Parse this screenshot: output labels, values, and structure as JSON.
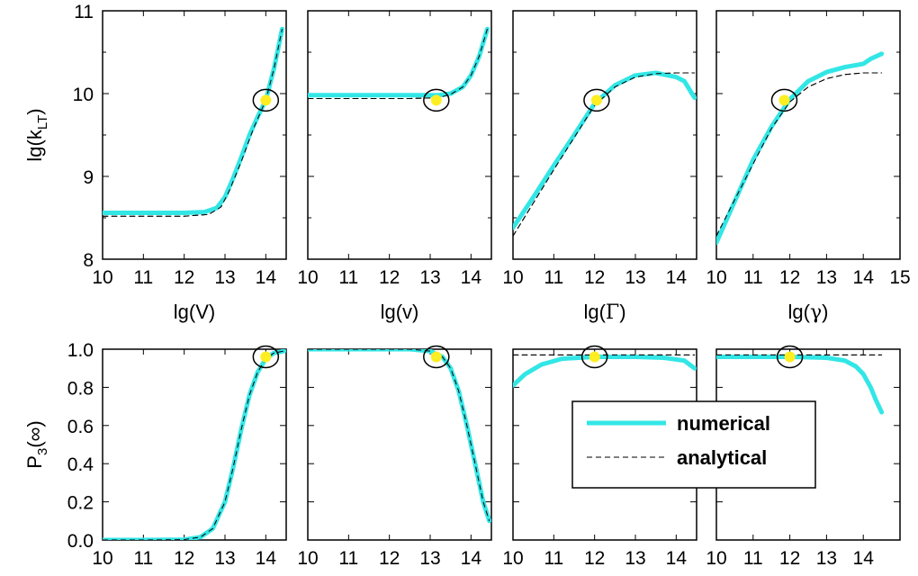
{
  "chart_data": [
    {
      "type": "line",
      "xlim": [
        10,
        14.5
      ],
      "ylim": [
        8,
        11
      ],
      "xticks": [
        "10",
        "11",
        "12",
        "13",
        "14"
      ],
      "yticks": [
        "8",
        "9",
        "10",
        "11"
      ],
      "xlabel": {
        "text": "lg(V)"
      },
      "ylabel": {
        "text": "lg(k",
        "sub": "LT",
        "suffix": ")"
      },
      "series": [
        {
          "name": "numerical",
          "style": "solid",
          "color": "#33e6e6",
          "points": [
            [
              10,
              8.56
            ],
            [
              11,
              8.56
            ],
            [
              12,
              8.56
            ],
            [
              12.5,
              8.57
            ],
            [
              12.8,
              8.62
            ],
            [
              13,
              8.75
            ],
            [
              13.2,
              8.98
            ],
            [
              13.4,
              9.23
            ],
            [
              13.6,
              9.5
            ],
            [
              13.8,
              9.72
            ],
            [
              14,
              9.92
            ],
            [
              14.2,
              10.3
            ],
            [
              14.4,
              10.78
            ]
          ]
        },
        {
          "name": "analytical",
          "style": "dashed",
          "color": "#000000",
          "points": [
            [
              10,
              8.52
            ],
            [
              12,
              8.52
            ],
            [
              12.6,
              8.54
            ],
            [
              12.9,
              8.63
            ],
            [
              13.1,
              8.82
            ],
            [
              13.4,
              9.18
            ],
            [
              13.7,
              9.58
            ],
            [
              14,
              9.92
            ],
            [
              14.2,
              10.3
            ],
            [
              14.4,
              10.78
            ]
          ]
        }
      ],
      "marker": {
        "x": 14.0,
        "y": 9.92
      }
    },
    {
      "type": "line",
      "xlim": [
        10,
        14.5
      ],
      "ylim": [
        8,
        11
      ],
      "xticks": [
        "10",
        "11",
        "12",
        "13",
        "14"
      ],
      "xlabel": {
        "text": "lg(v)"
      },
      "series": [
        {
          "name": "numerical",
          "style": "solid",
          "color": "#33e6e6",
          "points": [
            [
              10,
              9.98
            ],
            [
              12.5,
              9.98
            ],
            [
              13.2,
              9.98
            ],
            [
              13.5,
              10.0
            ],
            [
              13.8,
              10.08
            ],
            [
              14,
              10.22
            ],
            [
              14.2,
              10.45
            ],
            [
              14.4,
              10.78
            ]
          ]
        },
        {
          "name": "analytical",
          "style": "dashed",
          "color": "#000000",
          "points": [
            [
              10,
              9.94
            ],
            [
              12.5,
              9.94
            ],
            [
              13.2,
              9.95
            ],
            [
              13.5,
              9.99
            ],
            [
              13.8,
              10.08
            ],
            [
              14,
              10.22
            ],
            [
              14.2,
              10.45
            ],
            [
              14.4,
              10.78
            ]
          ]
        }
      ],
      "marker": {
        "x": 13.15,
        "y": 9.92
      }
    },
    {
      "type": "line",
      "xlim": [
        10,
        14.5
      ],
      "ylim": [
        8,
        11
      ],
      "xticks": [
        "10",
        "11",
        "12",
        "13",
        "14"
      ],
      "xlabel": {
        "text": "lg(",
        "greek": "Γ",
        "suffix": ")"
      },
      "series": [
        {
          "name": "numerical",
          "style": "solid",
          "color": "#33e6e6",
          "points": [
            [
              10,
              8.38
            ],
            [
              10.5,
              8.75
            ],
            [
              11,
              9.13
            ],
            [
              11.5,
              9.5
            ],
            [
              12,
              9.88
            ],
            [
              12.5,
              10.1
            ],
            [
              13,
              10.22
            ],
            [
              13.5,
              10.25
            ],
            [
              14,
              10.2
            ],
            [
              14.2,
              10.15
            ],
            [
              14.45,
              9.95
            ]
          ]
        },
        {
          "name": "analytical",
          "style": "dashed",
          "color": "#000000",
          "points": [
            [
              10,
              8.28
            ],
            [
              10.5,
              8.68
            ],
            [
              11,
              9.08
            ],
            [
              11.5,
              9.47
            ],
            [
              12,
              9.86
            ],
            [
              12.5,
              10.08
            ],
            [
              13,
              10.2
            ],
            [
              13.5,
              10.24
            ],
            [
              14,
              10.25
            ],
            [
              14.45,
              10.25
            ]
          ]
        }
      ],
      "marker": {
        "x": 12.05,
        "y": 9.92
      }
    },
    {
      "type": "line",
      "xlim": [
        10,
        15
      ],
      "ylim": [
        8,
        11
      ],
      "xticks": [
        "10",
        "11",
        "12",
        "13",
        "14",
        "15"
      ],
      "xlabel": {
        "text": "lg(",
        "greek": "γ",
        "suffix": ")"
      },
      "series": [
        {
          "name": "numerical",
          "style": "solid",
          "color": "#33e6e6",
          "points": [
            [
              10,
              8.2
            ],
            [
              10.5,
              8.7
            ],
            [
              11,
              9.2
            ],
            [
              11.5,
              9.6
            ],
            [
              12,
              9.93
            ],
            [
              12.5,
              10.15
            ],
            [
              13,
              10.26
            ],
            [
              13.5,
              10.32
            ],
            [
              14,
              10.36
            ],
            [
              14.2,
              10.42
            ],
            [
              14.5,
              10.48
            ]
          ]
        },
        {
          "name": "analytical",
          "style": "dashed",
          "color": "#000000",
          "points": [
            [
              10,
              8.28
            ],
            [
              10.5,
              8.72
            ],
            [
              11,
              9.15
            ],
            [
              11.5,
              9.58
            ],
            [
              12,
              9.9
            ],
            [
              12.5,
              10.08
            ],
            [
              13,
              10.18
            ],
            [
              13.5,
              10.23
            ],
            [
              14,
              10.25
            ],
            [
              14.5,
              10.25
            ]
          ]
        }
      ],
      "marker": {
        "x": 11.85,
        "y": 9.92
      }
    },
    {
      "type": "line",
      "xlim": [
        10,
        14.5
      ],
      "ylim": [
        0,
        1
      ],
      "xticks": [
        "10",
        "11",
        "12",
        "13",
        "14"
      ],
      "yticks": [
        "0.0",
        "0.2",
        "0.4",
        "0.6",
        "0.8",
        "1.0"
      ],
      "ylabel": {
        "text": "P",
        "sub": "3",
        "suffix": "(∞)"
      },
      "series": [
        {
          "name": "numerical",
          "style": "solid",
          "color": "#33e6e6",
          "points": [
            [
              10,
              0
            ],
            [
              11,
              0
            ],
            [
              12,
              0.002
            ],
            [
              12.4,
              0.015
            ],
            [
              12.7,
              0.06
            ],
            [
              13,
              0.2
            ],
            [
              13.2,
              0.38
            ],
            [
              13.4,
              0.58
            ],
            [
              13.6,
              0.76
            ],
            [
              13.8,
              0.88
            ],
            [
              14,
              0.95
            ],
            [
              14.2,
              0.98
            ],
            [
              14.45,
              0.99
            ]
          ]
        },
        {
          "name": "analytical",
          "style": "dashed",
          "color": "#000000",
          "points": [
            [
              10,
              0
            ],
            [
              11,
              0
            ],
            [
              12,
              0.002
            ],
            [
              12.4,
              0.015
            ],
            [
              12.7,
              0.06
            ],
            [
              13,
              0.2
            ],
            [
              13.2,
              0.38
            ],
            [
              13.4,
              0.58
            ],
            [
              13.6,
              0.76
            ],
            [
              13.8,
              0.88
            ],
            [
              14,
              0.95
            ],
            [
              14.2,
              0.98
            ],
            [
              14.45,
              0.99
            ]
          ]
        }
      ],
      "marker": {
        "x": 14.0,
        "y": 0.96
      }
    },
    {
      "type": "line",
      "xlim": [
        10,
        14.5
      ],
      "ylim": [
        0,
        1
      ],
      "xticks": [
        "10",
        "11",
        "12",
        "13",
        "14"
      ],
      "series": [
        {
          "name": "numerical",
          "style": "solid",
          "color": "#33e6e6",
          "points": [
            [
              10,
              1.0
            ],
            [
              12.5,
              1.0
            ],
            [
              13,
              0.99
            ],
            [
              13.3,
              0.96
            ],
            [
              13.5,
              0.9
            ],
            [
              13.7,
              0.78
            ],
            [
              13.9,
              0.6
            ],
            [
              14.1,
              0.4
            ],
            [
              14.3,
              0.2
            ],
            [
              14.45,
              0.1
            ]
          ]
        },
        {
          "name": "analytical",
          "style": "dashed",
          "color": "#000000",
          "points": [
            [
              10,
              1.0
            ],
            [
              12.5,
              1.0
            ],
            [
              13,
              0.99
            ],
            [
              13.3,
              0.96
            ],
            [
              13.5,
              0.9
            ],
            [
              13.7,
              0.78
            ],
            [
              13.9,
              0.6
            ],
            [
              14.1,
              0.4
            ],
            [
              14.3,
              0.2
            ],
            [
              14.45,
              0.1
            ]
          ]
        }
      ],
      "marker": {
        "x": 13.15,
        "y": 0.96
      }
    },
    {
      "type": "line",
      "xlim": [
        10,
        14.5
      ],
      "ylim": [
        0,
        1
      ],
      "xticks": [
        "10",
        "11",
        "12",
        "13",
        "14"
      ],
      "series": [
        {
          "name": "numerical",
          "style": "solid",
          "color": "#33e6e6",
          "points": [
            [
              10,
              0.81
            ],
            [
              10.3,
              0.87
            ],
            [
              10.7,
              0.92
            ],
            [
              11.2,
              0.95
            ],
            [
              12,
              0.96
            ],
            [
              13,
              0.96
            ],
            [
              13.7,
              0.955
            ],
            [
              14.2,
              0.94
            ],
            [
              14.45,
              0.9
            ]
          ]
        },
        {
          "name": "analytical",
          "style": "dashed",
          "color": "#000000",
          "points": [
            [
              10,
              0.97
            ],
            [
              14.45,
              0.97
            ]
          ]
        }
      ],
      "marker": {
        "x": 12.0,
        "y": 0.96
      }
    },
    {
      "type": "line",
      "xlim": [
        10,
        15
      ],
      "ylim": [
        0,
        1
      ],
      "xticks": [
        "10",
        "11",
        "12",
        "13",
        "14"
      ],
      "series": [
        {
          "name": "numerical",
          "style": "solid",
          "color": "#33e6e6",
          "points": [
            [
              10,
              0.96
            ],
            [
              11,
              0.96
            ],
            [
              12,
              0.96
            ],
            [
              13,
              0.955
            ],
            [
              13.5,
              0.94
            ],
            [
              13.8,
              0.91
            ],
            [
              14,
              0.87
            ],
            [
              14.2,
              0.8
            ],
            [
              14.35,
              0.73
            ],
            [
              14.5,
              0.67
            ]
          ]
        },
        {
          "name": "analytical",
          "style": "dashed",
          "color": "#000000",
          "points": [
            [
              10,
              0.97
            ],
            [
              14.5,
              0.97
            ]
          ]
        }
      ],
      "marker": {
        "x": 12.0,
        "y": 0.96
      }
    }
  ],
  "legend": {
    "placement": "inside bottom panels, right",
    "entries": [
      {
        "label": "numerical",
        "style": "solid",
        "color": "#33e6e6"
      },
      {
        "label": "analytical",
        "style": "dashed",
        "color": "#000000"
      }
    ]
  },
  "colors": {
    "numerical": "#33e6e6",
    "analytical": "#000000",
    "marker_fill": "#ffee22",
    "marker_ring": "#000000"
  }
}
